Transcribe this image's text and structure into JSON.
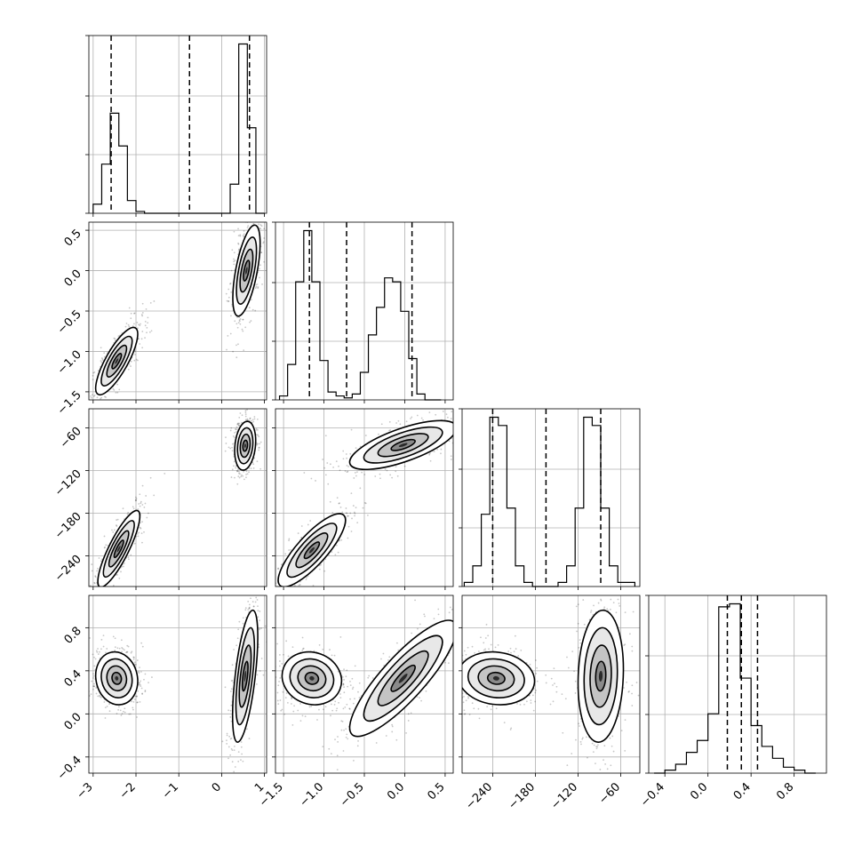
{
  "chart_data": {
    "type": "corner",
    "grid": true,
    "n_params": 4,
    "ranges": [
      [
        -3.1,
        1.05
      ],
      [
        -1.6,
        0.6
      ],
      [
        -283,
        -33
      ],
      [
        -0.55,
        1.1
      ]
    ],
    "ticks": [
      {
        "values": [
          -3,
          -2,
          -1,
          0,
          1
        ],
        "labels": [
          "−3",
          "−2",
          "−1",
          "0",
          "1"
        ]
      },
      {
        "values": [
          -1.5,
          -1.0,
          -0.5,
          0.0,
          0.5
        ],
        "labels": [
          "−1.5",
          "−1.0",
          "−0.5",
          "0.0",
          "0.5"
        ]
      },
      {
        "values": [
          -240,
          -180,
          -120,
          -60
        ],
        "labels": [
          "−240",
          "−180",
          "−120",
          "−60"
        ]
      },
      {
        "values": [
          -0.4,
          0.0,
          0.4,
          0.8
        ],
        "labels": [
          "−0.4",
          "0.0",
          "0.4",
          "0.8"
        ]
      }
    ],
    "y_ticks": [
      {
        "values": [],
        "labels": []
      },
      {
        "values": [
          -1.5,
          -1.0,
          -0.5,
          0.0,
          0.5
        ],
        "labels": [
          "−1.5",
          "−1.0",
          "−0.5",
          "0.0",
          "0.5"
        ]
      },
      {
        "values": [
          -240,
          -180,
          -120,
          -60
        ],
        "labels": [
          "−240",
          "−180",
          "−120",
          "−60"
        ]
      },
      {
        "values": [
          -0.4,
          0.0,
          0.4,
          0.8
        ],
        "labels": [
          "−0.4",
          "0.0",
          "0.4",
          "0.8"
        ]
      }
    ],
    "histograms": [
      {
        "param": 0,
        "bin_edges": [
          -3.0,
          -2.8,
          -2.6,
          -2.4,
          -2.2,
          -2.0,
          -1.8,
          -1.6,
          -1.4,
          0.2,
          0.4,
          0.6,
          0.8,
          1.0
        ],
        "counts": [
          0.05,
          0.27,
          0.55,
          0.37,
          0.07,
          0.01,
          0.0,
          0.0,
          0.0,
          0.16,
          0.93,
          0.47,
          0.0
        ],
        "quantiles": [
          -2.58,
          -0.75,
          0.65
        ]
      },
      {
        "param": 1,
        "bin_edges": [
          -1.55,
          -1.45,
          -1.35,
          -1.25,
          -1.15,
          -1.05,
          -0.95,
          -0.85,
          -0.75,
          -0.65,
          -0.55,
          -0.45,
          -0.35,
          -0.25,
          -0.15,
          -0.05,
          0.05,
          0.15,
          0.25,
          0.35,
          0.45
        ],
        "counts": [
          0.02,
          0.18,
          0.6,
          0.86,
          0.6,
          0.2,
          0.04,
          0.02,
          0.01,
          0.03,
          0.14,
          0.33,
          0.47,
          0.62,
          0.6,
          0.45,
          0.21,
          0.03,
          0.0,
          0.0
        ],
        "quantiles": [
          -1.18,
          -0.72,
          0.09
        ]
      },
      {
        "param": 2,
        "bin_edges": [
          -280,
          -268,
          -256,
          -244,
          -232,
          -220,
          -208,
          -196,
          -184,
          -172,
          -160,
          -148,
          -136,
          -124,
          -112,
          -100,
          -88,
          -76,
          -64,
          -52,
          -40
        ],
        "counts": [
          0.02,
          0.1,
          0.35,
          0.82,
          0.78,
          0.38,
          0.1,
          0.02,
          0.0,
          0.0,
          0.0,
          0.02,
          0.1,
          0.38,
          0.82,
          0.78,
          0.38,
          0.1,
          0.02,
          0.02
        ],
        "quantiles": [
          -240,
          -165,
          -88
        ]
      },
      {
        "param": 3,
        "bin_edges": [
          -0.5,
          -0.4,
          -0.3,
          -0.2,
          -0.1,
          0.0,
          0.1,
          0.2,
          0.3,
          0.4,
          0.5,
          0.6,
          0.7,
          0.8,
          0.9,
          1.0
        ],
        "counts": [
          0.0,
          0.01,
          0.03,
          0.07,
          0.11,
          0.2,
          0.56,
          0.57,
          0.32,
          0.16,
          0.09,
          0.05,
          0.02,
          0.01,
          0.0
        ],
        "quantiles": [
          0.18,
          0.31,
          0.46
        ]
      }
    ],
    "scatter_modes": [
      {
        "params": [
          0,
          1
        ],
        "modes": [
          {
            "center": [
              -2.45,
              -1.12
            ],
            "sd": [
              0.2,
              0.17
            ],
            "rho": 0.8
          },
          {
            "center": [
              0.58,
              0.0
            ],
            "sd": [
              0.13,
              0.23
            ],
            "rho": 0.6
          }
        ]
      },
      {
        "params": [
          0,
          2
        ],
        "modes": [
          {
            "center": [
              -2.4,
              -230
            ],
            "sd": [
              0.2,
              22
            ],
            "rho": 0.85
          },
          {
            "center": [
              0.55,
              -85
            ],
            "sd": [
              0.1,
              14
            ],
            "rho": 0.2
          }
        ]
      },
      {
        "params": [
          1,
          2
        ],
        "modes": [
          {
            "center": [
              -1.15,
              -232
            ],
            "sd": [
              0.17,
              21
            ],
            "rho": 0.82
          },
          {
            "center": [
              -0.02,
              -84
            ],
            "sd": [
              0.27,
              14
            ],
            "rho": 0.7
          }
        ]
      },
      {
        "params": [
          0,
          3
        ],
        "modes": [
          {
            "center": [
              -2.45,
              0.33
            ],
            "sd": [
              0.2,
              0.1
            ],
            "rho": -0.1
          },
          {
            "center": [
              0.55,
              0.35
            ],
            "sd": [
              0.12,
              0.25
            ],
            "rho": 0.6
          }
        ]
      },
      {
        "params": [
          1,
          3
        ],
        "modes": [
          {
            "center": [
              -1.15,
              0.33
            ],
            "sd": [
              0.15,
              0.1
            ],
            "rho": -0.1
          },
          {
            "center": [
              -0.02,
              0.33
            ],
            "sd": [
              0.27,
              0.22
            ],
            "rho": 0.85
          }
        ]
      },
      {
        "params": [
          2,
          3
        ],
        "modes": [
          {
            "center": [
              -235,
              0.33
            ],
            "sd": [
              22,
              0.1
            ],
            "rho": -0.1
          },
          {
            "center": [
              -88,
              0.35
            ],
            "sd": [
              13,
              0.25
            ],
            "rho": 0.1
          }
        ]
      }
    ]
  }
}
